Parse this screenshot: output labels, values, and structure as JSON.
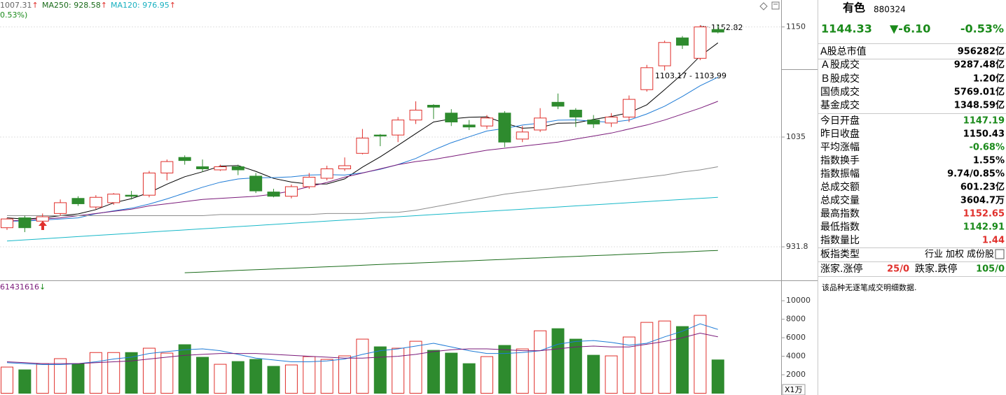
{
  "header": {
    "ma_labels": [
      {
        "text": "1007.31",
        "arrow": "↑",
        "color": "#666666"
      },
      {
        "text": "MA250: 928.58",
        "arrow": "↑",
        "color": "#1a6b1a"
      },
      {
        "text": "MA120: 976.95",
        "arrow": "↑",
        "color": "#17b0c0"
      }
    ],
    "sub": "0.53%)",
    "volume_label": {
      "text": "61431616",
      "arrow": "↓"
    }
  },
  "chart_data": [
    {
      "type": "candlestick",
      "log": true,
      "grid": true,
      "up_color": "#e0302c",
      "down_color": "#2e8b2e",
      "ylim": [
        903,
        1180
      ],
      "yticks": [
        931.8,
        1035,
        1150
      ],
      "open": [
        949,
        958,
        955,
        962,
        976,
        968,
        972,
        979,
        979,
        1000,
        1015,
        1006,
        1003,
        1006,
        997,
        982,
        978,
        987,
        995,
        1004,
        1019,
        1037,
        1037,
        1052,
        1067,
        1059,
        1047,
        1046,
        1059,
        1033,
        1042,
        1070,
        1062,
        1052,
        1049,
        1055,
        1083,
        1108,
        1138,
        1116,
        1147.19
      ],
      "high": [
        958,
        960,
        962,
        975,
        978,
        979,
        981,
        983,
        1002,
        1013,
        1017,
        1013,
        1008,
        1008,
        1000,
        985,
        989,
        1000,
        1007,
        1015,
        1043,
        1038,
        1055,
        1071,
        1068,
        1063,
        1052,
        1057,
        1061,
        1046,
        1064,
        1079,
        1064,
        1057,
        1059,
        1077,
        1109,
        1135,
        1140,
        1152,
        1152.65
      ],
      "low": [
        947,
        945,
        953,
        960,
        969,
        966,
        970,
        975,
        977,
        993,
        1008,
        1001,
        1002,
        998,
        981,
        977,
        976,
        985,
        993,
        1002,
        1018,
        1026,
        1030,
        1048,
        1053,
        1046,
        1042,
        1043,
        1025,
        1030,
        1040,
        1063,
        1045,
        1044,
        1045,
        1050,
        1081,
        1103,
        1126,
        1114,
        1142.91
      ],
      "close": [
        957,
        949,
        959,
        972,
        971,
        977,
        980,
        978,
        1000,
        1011,
        1012,
        1004,
        1006,
        1003,
        983,
        978,
        987,
        996,
        1004,
        1007,
        1034,
        1036,
        1052,
        1062,
        1065,
        1050,
        1045,
        1054,
        1030,
        1040,
        1054,
        1066,
        1055,
        1048,
        1055,
        1073,
        1106,
        1133,
        1130,
        1150,
        1144.33
      ],
      "series": [
        {
          "color": "#000000",
          "values": [
            958,
            957,
            958,
            960,
            961.6,
            965.6,
            971.8,
            975.8,
            981.4,
            989.4,
            996.4,
            1001.2,
            1006.6,
            1007.2,
            1001.6,
            994.8,
            991.4,
            989.4,
            989.6,
            994.4,
            1005.6,
            1015.6,
            1026.8,
            1038.4,
            1050,
            1053.2,
            1054.8,
            1055.2,
            1048.8,
            1043.8,
            1044.6,
            1048.8,
            1049,
            1052.6,
            1055.6,
            1059.4,
            1067.4,
            1083,
            1099.4,
            1118.4,
            1132.6
          ]
        },
        {
          "color": "#1e7bd6",
          "values": [
            955,
            955,
            956,
            957,
            958,
            961.8,
            964.4,
            966.9,
            970.7,
            975.5,
            981,
            986.5,
            991.2,
            994.3,
            995.5,
            995.6,
            996.3,
            998,
            998.4,
            998,
            1000.2,
            1003.5,
            1008.1,
            1014,
            1022.2,
            1029.4,
            1035.2,
            1041,
            1043.6,
            1046.9,
            1048.9,
            1051.8,
            1052.1,
            1050.7,
            1049.7,
            1052,
            1058.1,
            1066,
            1076,
            1087,
            1096
          ]
        },
        {
          "color": "#7a1a7a",
          "values": [
            955,
            956,
            957,
            958,
            960,
            962,
            964,
            966,
            969,
            971,
            973,
            975,
            976,
            977,
            978,
            980,
            983,
            987,
            991,
            996,
            1000,
            1004,
            1008,
            1011,
            1013,
            1016,
            1019,
            1022,
            1024,
            1026,
            1028,
            1030,
            1033,
            1036,
            1039,
            1043,
            1047,
            1052,
            1058,
            1064,
            1071
          ]
        },
        {
          "color": "#8c8c8c",
          "values": [
            960,
            960,
            960,
            960,
            960,
            960,
            960,
            960,
            960,
            960,
            960,
            960,
            961,
            961,
            961,
            961,
            961,
            961,
            962,
            962,
            962,
            963,
            963,
            965,
            968,
            971,
            974,
            977,
            980,
            982,
            984,
            986,
            988,
            990,
            992,
            994,
            996,
            998,
            1001,
            1003,
            1006
          ]
        },
        {
          "color": "#17b8c8",
          "values": [
            937,
            938,
            939,
            940,
            941,
            942,
            943,
            944,
            945,
            946,
            947,
            948,
            949,
            950,
            951,
            952,
            953,
            954,
            955,
            956,
            957,
            958,
            959,
            960,
            961,
            962,
            963,
            964,
            965,
            966,
            967,
            968,
            969,
            970,
            971,
            972,
            973,
            974,
            975,
            976,
            977
          ]
        },
        {
          "color": "#1a6b1a",
          "values": [
            null,
            null,
            null,
            null,
            null,
            null,
            null,
            null,
            null,
            null,
            909,
            909.6,
            910.3,
            911,
            911.6,
            912.3,
            912.9,
            913.6,
            914.2,
            914.8,
            915.5,
            916.2,
            916.8,
            917.5,
            918.1,
            918.8,
            919.4,
            920.1,
            920.7,
            921.4,
            922,
            922.7,
            923.3,
            924,
            924.6,
            925.3,
            925.9,
            926.6,
            927.2,
            927.9,
            928.6
          ]
        }
      ],
      "annotations": [
        "1152.82",
        "1103.17 - 1103.99"
      ]
    },
    {
      "type": "bar",
      "unit": "X1万",
      "ylim": [
        0,
        11900
      ],
      "yticks": [
        2000,
        4000,
        6000,
        8000,
        10000
      ],
      "values": [
        2830,
        2530,
        3200,
        3740,
        3200,
        4400,
        4400,
        4400,
        4870,
        4340,
        5250,
        3890,
        3130,
        3430,
        3660,
        2910,
        3060,
        3960,
        3660,
        4040,
        5850,
        5020,
        4870,
        5620,
        4640,
        4340,
        3200,
        3960,
        5170,
        4790,
        6750,
        6980,
        5850,
        4110,
        4040,
        6080,
        7660,
        7810,
        7210,
        8420,
        3604.7
      ],
      "series": [
        {
          "color": "#1e7bd6",
          "values": [
            3300,
            3200,
            3100,
            3100,
            3200,
            3400,
            3700,
            3900,
            4300,
            4500,
            4700,
            4800,
            4600,
            4200,
            3800,
            3600,
            3400,
            3400,
            3500,
            3700,
            4200,
            4600,
            4800,
            5100,
            5400,
            5000,
            4600,
            4300,
            4300,
            4400,
            4600,
            5300,
            5600,
            5700,
            5500,
            5200,
            5400,
            6100,
            6700,
            7500,
            6900
          ]
        },
        {
          "color": "#7a1a7a",
          "values": [
            3400,
            3300,
            3200,
            3200,
            3200,
            3300,
            3400,
            3500,
            3700,
            3900,
            4100,
            4200,
            4300,
            4300,
            4300,
            4200,
            4100,
            4000,
            3900,
            3800,
            3800,
            3900,
            4000,
            4200,
            4500,
            4700,
            4800,
            4800,
            4700,
            4600,
            4600,
            4800,
            5000,
            5100,
            5000,
            5000,
            5300,
            5600,
            6000,
            6500,
            6100
          ]
        }
      ]
    }
  ],
  "panel": {
    "name": "有色",
    "code": "880324",
    "price": "1144.33",
    "change": "▼-6.10",
    "change_pct": "-0.53%",
    "quote_color": "#1a8a1a",
    "rows": [
      {
        "label": "A股总市值",
        "value": "956282亿",
        "color": "#000000"
      },
      {
        "label": "Ａ股成交",
        "value": "9287.48亿",
        "color": "#000000"
      },
      {
        "label": "Ｂ股成交",
        "value": "1.20亿",
        "color": "#000000"
      },
      {
        "label": "国债成交",
        "value": "5769.01亿",
        "color": "#000000"
      },
      {
        "label": "基金成交",
        "value": "1348.59亿",
        "color": "#000000"
      },
      {
        "label": "今日开盘",
        "value": "1147.19",
        "color": "#1a8a1a"
      },
      {
        "label": "昨日收盘",
        "value": "1150.43",
        "color": "#000000"
      },
      {
        "label": "平均涨幅",
        "value": "-0.68%",
        "color": "#1a8a1a"
      },
      {
        "label": "指数换手",
        "value": "1.55%",
        "color": "#000000"
      },
      {
        "label": "指数振幅",
        "value": "9.74/0.85%",
        "color": "#000000"
      },
      {
        "label": "总成交额",
        "value": "601.23亿",
        "color": "#000000"
      },
      {
        "label": "总成交量",
        "value": "3604.7万",
        "color": "#000000"
      },
      {
        "label": "最高指数",
        "value": "1152.65",
        "color": "#e0302c"
      },
      {
        "label": "最低指数",
        "value": "1142.91",
        "color": "#1a8a1a"
      },
      {
        "label": "指数量比",
        "value": "1.44",
        "color": "#e0302c"
      }
    ],
    "type_label": "板指类型",
    "type_tags": [
      "行业",
      "加权",
      "成份股"
    ],
    "breadth": {
      "up_label": "涨家.涨停",
      "up_value": "25/0",
      "down_label": "跌家.跌停",
      "down_value": "105/0"
    },
    "note": "该品种无逐笔成交明细数据."
  }
}
